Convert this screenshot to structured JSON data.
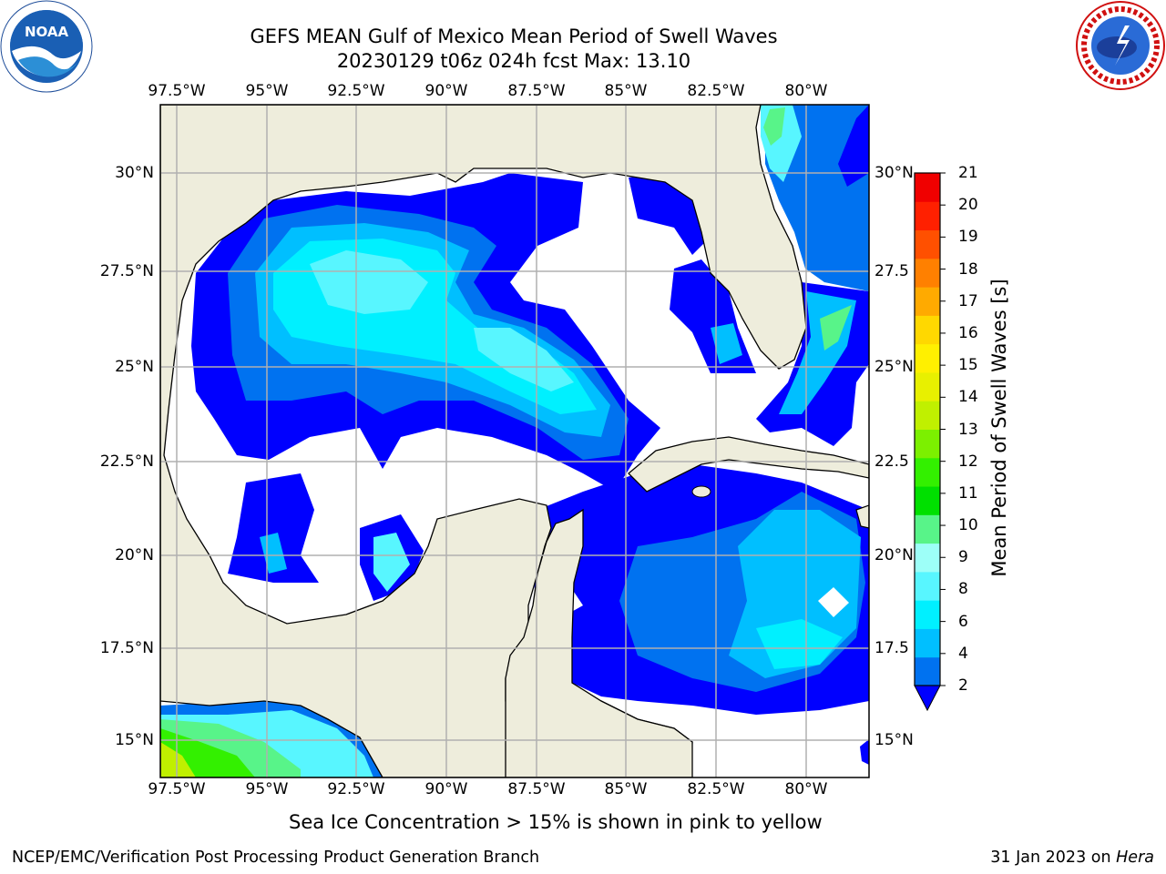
{
  "title": {
    "line1": "GEFS MEAN Gulf of Mexico Mean Period of Swell Waves",
    "line2": "20230129 t06z 024h fcst   Max: 13.10"
  },
  "logos": {
    "left": "noaa-logo",
    "right": "national-weather-service-logo"
  },
  "map": {
    "lon_labels": [
      "97.5°W",
      "95°W",
      "92.5°W",
      "90°W",
      "87.5°W",
      "85°W",
      "82.5°W",
      "80°W"
    ],
    "lat_labels_left": [
      "30°N",
      "27.5°N",
      "25°N",
      "22.5°N",
      "20°N",
      "17.5°N",
      "15°N"
    ],
    "lat_labels_right": [
      "30°N",
      "27.5",
      "25°N",
      "22.5",
      "20°N",
      "17.5",
      "15°N"
    ],
    "colors": {
      "land": "#eeeddc",
      "no_data": "#ffffff",
      "gridline": "#b0b0b0",
      "coastline": "#000000"
    }
  },
  "colorbar": {
    "label": "Mean Period of Swell Waves [s]",
    "ticks": [
      "21",
      "20",
      "19",
      "18",
      "17",
      "16",
      "15",
      "14",
      "13",
      "12",
      "11",
      "10",
      "9",
      "8",
      "6",
      "4",
      "2"
    ],
    "colors_low_to_high": [
      "#0072f0",
      "#00bfff",
      "#00f0ff",
      "#58f6ff",
      "#9dfff8",
      "#58f489",
      "#00e000",
      "#33f000",
      "#7cf000",
      "#c0f000",
      "#e8f000",
      "#fff000",
      "#ffd800",
      "#ffaa00",
      "#ff8000",
      "#ff5000",
      "#ff2000",
      "#f00000"
    ],
    "extend_color": "#0000ff"
  },
  "note": "Sea Ice Concentration > 15% is shown in pink to yellow",
  "footer": {
    "left": "NCEP/EMC/Verification Post Processing Product Generation Branch",
    "right_date": "31 Jan 2023 on ",
    "right_machine": "Hera"
  }
}
